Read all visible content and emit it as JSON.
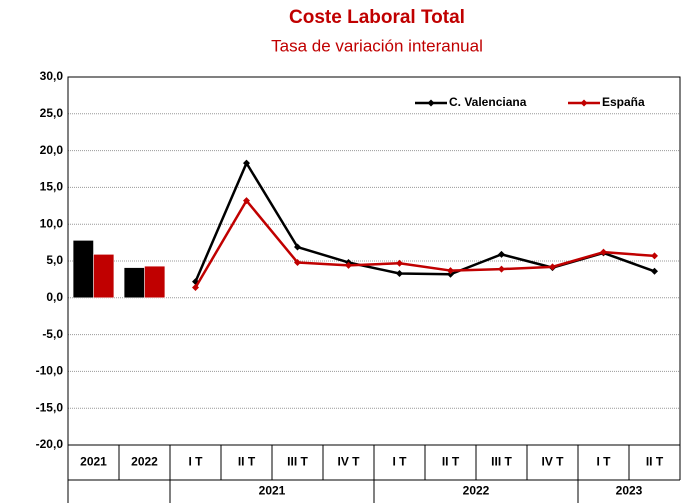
{
  "chart_data": {
    "type": "bar-line",
    "title": "Coste Laboral Total",
    "subtitle": "Tasa de variación interanual",
    "annual_categories": [
      "2021",
      "2022"
    ],
    "quarter_categories": [
      "I T",
      "II T",
      "III T",
      "IV T",
      "I T",
      "II T",
      "III T",
      "IV T",
      "I T",
      "II T"
    ],
    "quarter_groups": [
      {
        "label": "2021",
        "count": 4
      },
      {
        "label": "2022",
        "count": 4
      },
      {
        "label": "2023",
        "count": 2
      }
    ],
    "series": [
      {
        "name": "C. Valenciana",
        "color": "#000000",
        "annual_values": [
          7.8,
          4.1
        ],
        "quarterly_values": [
          2.2,
          18.3,
          6.9,
          4.8,
          3.3,
          3.2,
          5.9,
          4.1,
          6.1,
          3.6
        ]
      },
      {
        "name": "España",
        "color": "#c00000",
        "annual_values": [
          5.9,
          4.3
        ],
        "quarterly_values": [
          1.4,
          13.2,
          4.8,
          4.4,
          4.7,
          3.7,
          3.9,
          4.2,
          6.2,
          5.7
        ]
      }
    ],
    "ylim": [
      -20,
      30
    ],
    "yticks": [
      {
        "value": -20,
        "label": "-20,0"
      },
      {
        "value": -15,
        "label": "-15,0"
      },
      {
        "value": -10,
        "label": "-10,0"
      },
      {
        "value": -5,
        "label": "-5,0"
      },
      {
        "value": 0,
        "label": "0,0"
      },
      {
        "value": 5,
        "label": "5,0"
      },
      {
        "value": 10,
        "label": "10,0"
      },
      {
        "value": 15,
        "label": "15,0"
      },
      {
        "value": 20,
        "label": "20,0"
      },
      {
        "value": 25,
        "label": "25,0"
      },
      {
        "value": 30,
        "label": "30,0"
      }
    ],
    "grid": true,
    "legend": "top-right"
  }
}
